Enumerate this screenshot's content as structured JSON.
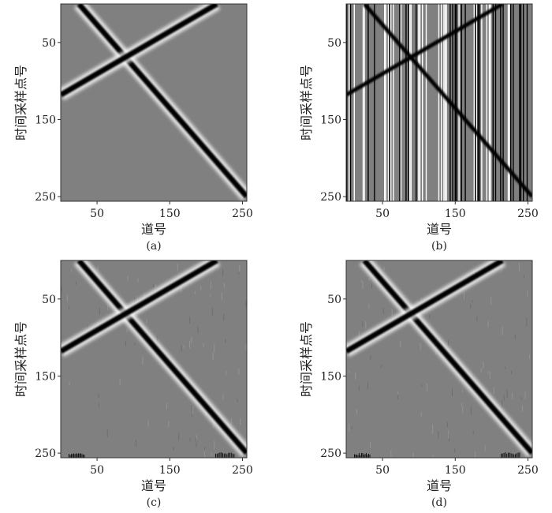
{
  "chart_data": [
    {
      "type": "heatmap",
      "caption": "(a)",
      "xlabel": "道号",
      "ylabel": "时间采样点号",
      "xticks": [
        50,
        150,
        250
      ],
      "yticks": [
        50,
        150,
        250
      ],
      "xlim": [
        0,
        256
      ],
      "ylim": [
        0,
        256
      ],
      "style": "clean",
      "events": [
        {
          "x0": 25,
          "t0": 0,
          "x1": 256,
          "t1": 250
        },
        {
          "x0": 0,
          "t0": 118,
          "x1": 215,
          "t1": 0
        }
      ]
    },
    {
      "type": "heatmap",
      "caption": "(b)",
      "xlabel": "道号",
      "ylabel": "时间采样点号",
      "xticks": [
        50,
        150,
        250
      ],
      "yticks": [
        50,
        150,
        250
      ],
      "xlim": [
        0,
        256
      ],
      "ylim": [
        0,
        256
      ],
      "style": "trace-noise",
      "events": [
        {
          "x0": 25,
          "t0": 0,
          "x1": 256,
          "t1": 250
        },
        {
          "x0": 0,
          "t0": 118,
          "x1": 215,
          "t1": 0
        }
      ]
    },
    {
      "type": "heatmap",
      "caption": "(c)",
      "xlabel": "道号",
      "ylabel": "时间采样点号",
      "xticks": [
        50,
        150,
        250
      ],
      "yticks": [
        50,
        150,
        250
      ],
      "xlim": [
        0,
        256
      ],
      "ylim": [
        0,
        256
      ],
      "style": "residual",
      "events": [
        {
          "x0": 25,
          "t0": 0,
          "x1": 256,
          "t1": 250
        },
        {
          "x0": 0,
          "t0": 118,
          "x1": 215,
          "t1": 0
        }
      ]
    },
    {
      "type": "heatmap",
      "caption": "(d)",
      "xlabel": "道号",
      "ylabel": "时间采样点号",
      "xticks": [
        50,
        150,
        250
      ],
      "yticks": [
        50,
        150,
        250
      ],
      "xlim": [
        0,
        256
      ],
      "ylim": [
        0,
        256
      ],
      "style": "residual",
      "events": [
        {
          "x0": 25,
          "t0": 0,
          "x1": 256,
          "t1": 250
        },
        {
          "x0": 0,
          "t0": 118,
          "x1": 215,
          "t1": 0
        }
      ]
    }
  ],
  "colors": {
    "background": "#808080",
    "event": "#000000",
    "sidelobe": "#ffffff"
  }
}
